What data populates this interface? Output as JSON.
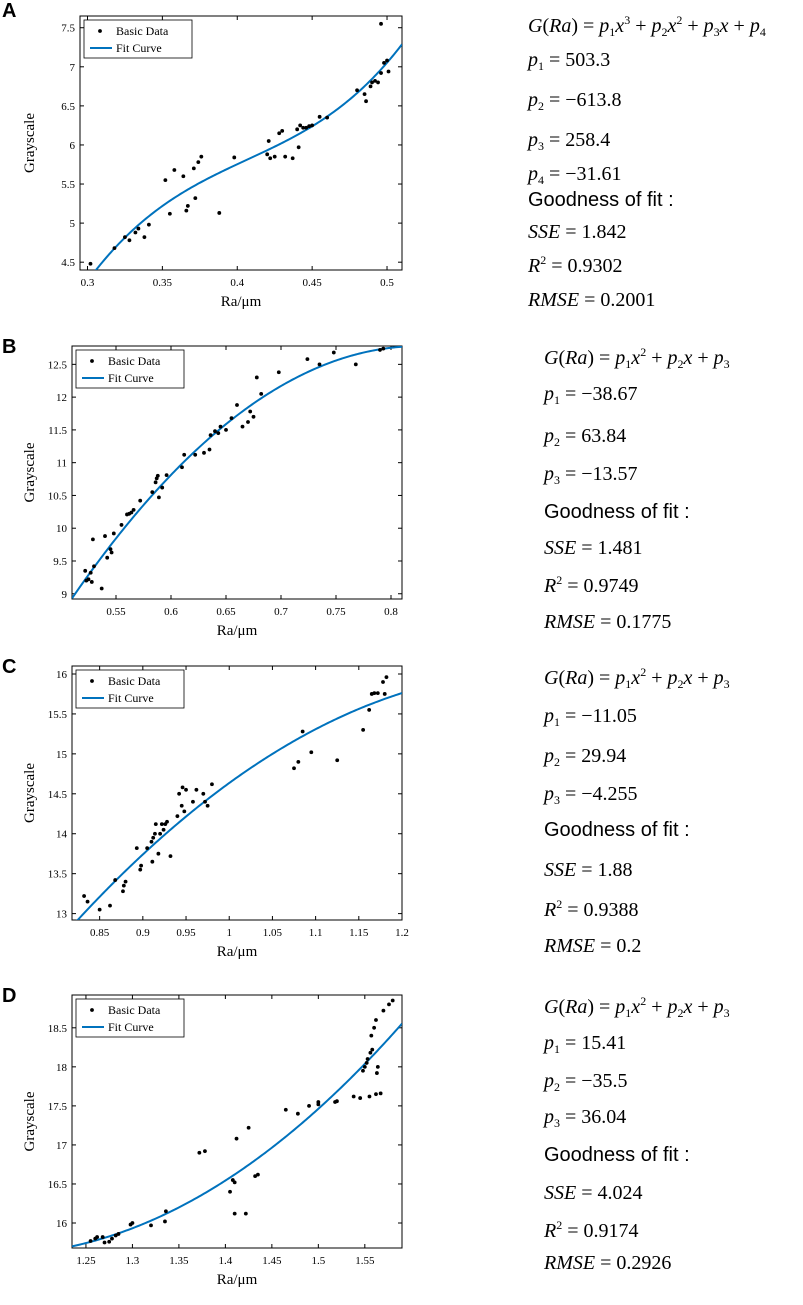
{
  "colors": {
    "fit": "#0072BD",
    "points": "#000000",
    "axis": "#000000"
  },
  "gof_label": "Goodness of fit :",
  "chart_data": [
    {
      "panel": "A",
      "type": "scatter",
      "xlabel": "Ra/μm",
      "ylabel": "Grayscale",
      "xlim": [
        0.295,
        0.51
      ],
      "ylim": [
        4.4,
        7.65
      ],
      "xticks": [
        0.3,
        0.35,
        0.4,
        0.45,
        0.5
      ],
      "xtick_labels": [
        "0.3",
        "0.35",
        "0.4",
        "0.45",
        "0.5"
      ],
      "yticks": [
        4.5,
        5,
        5.5,
        6,
        6.5,
        7,
        7.5
      ],
      "ytick_labels": [
        "4.5",
        "5",
        "5.5",
        "6",
        "6.5",
        "7",
        "7.5"
      ],
      "legend": [
        "Basic Data",
        "Fit Curve"
      ],
      "legend_position": "top-left",
      "fit": {
        "model": "cubic",
        "coef": [
          503.3,
          -613.8,
          258.4,
          -31.61
        ]
      },
      "points": [
        [
          0.302,
          4.48
        ],
        [
          0.318,
          4.68
        ],
        [
          0.325,
          4.82
        ],
        [
          0.328,
          4.78
        ],
        [
          0.332,
          4.88
        ],
        [
          0.334,
          4.93
        ],
        [
          0.338,
          4.82
        ],
        [
          0.341,
          4.98
        ],
        [
          0.352,
          5.55
        ],
        [
          0.355,
          5.12
        ],
        [
          0.358,
          5.68
        ],
        [
          0.364,
          5.6
        ],
        [
          0.366,
          5.16
        ],
        [
          0.367,
          5.22
        ],
        [
          0.371,
          5.7
        ],
        [
          0.372,
          5.32
        ],
        [
          0.374,
          5.78
        ],
        [
          0.376,
          5.85
        ],
        [
          0.388,
          5.13
        ],
        [
          0.398,
          5.84
        ],
        [
          0.42,
          5.88
        ],
        [
          0.421,
          6.05
        ],
        [
          0.422,
          5.83
        ],
        [
          0.425,
          5.85
        ],
        [
          0.428,
          6.15
        ],
        [
          0.43,
          6.18
        ],
        [
          0.432,
          5.85
        ],
        [
          0.437,
          5.83
        ],
        [
          0.44,
          6.2
        ],
        [
          0.441,
          5.97
        ],
        [
          0.442,
          6.25
        ],
        [
          0.444,
          6.22
        ],
        [
          0.446,
          6.22
        ],
        [
          0.448,
          6.24
        ],
        [
          0.45,
          6.25
        ],
        [
          0.455,
          6.36
        ],
        [
          0.46,
          6.35
        ],
        [
          0.48,
          6.7
        ],
        [
          0.485,
          6.65
        ],
        [
          0.486,
          6.56
        ],
        [
          0.489,
          6.75
        ],
        [
          0.49,
          6.8
        ],
        [
          0.492,
          6.82
        ],
        [
          0.494,
          6.8
        ],
        [
          0.496,
          6.92
        ],
        [
          0.496,
          7.55
        ],
        [
          0.498,
          7.05
        ],
        [
          0.5,
          7.08
        ],
        [
          0.501,
          6.94
        ]
      ],
      "equations": [
        "G(Ra) = p1x3 + p2x2 + p3x + p4",
        "p1 = 503.3",
        "p2 = −613.8",
        "p3 = 258.4",
        "p4 = −31.61"
      ],
      "stats": {
        "sse": "1.842",
        "r2": "0.9302",
        "rmse": "0.2001"
      }
    },
    {
      "panel": "B",
      "type": "scatter",
      "xlabel": "Ra/μm",
      "ylabel": "Grayscale",
      "xlim": [
        0.51,
        0.81
      ],
      "ylim": [
        8.92,
        12.78
      ],
      "xticks": [
        0.55,
        0.6,
        0.65,
        0.7,
        0.75,
        0.8
      ],
      "xtick_labels": [
        "0.55",
        "0.6",
        "0.65",
        "0.7",
        "0.75",
        "0.8"
      ],
      "yticks": [
        9,
        9.5,
        10,
        10.5,
        11,
        11.5,
        12,
        12.5
      ],
      "ytick_labels": [
        "9",
        "9.5",
        "10",
        "10.5",
        "11",
        "11.5",
        "12",
        "12.5"
      ],
      "legend": [
        "Basic Data",
        "Fit Curve"
      ],
      "legend_position": "top-left",
      "fit": {
        "model": "quadratic",
        "coef": [
          -38.67,
          63.84,
          -13.57
        ]
      },
      "points": [
        [
          0.522,
          9.35
        ],
        [
          0.523,
          9.2
        ],
        [
          0.525,
          9.22
        ],
        [
          0.527,
          9.32
        ],
        [
          0.528,
          9.18
        ],
        [
          0.529,
          9.83
        ],
        [
          0.53,
          9.42
        ],
        [
          0.537,
          9.08
        ],
        [
          0.54,
          9.88
        ],
        [
          0.542,
          9.55
        ],
        [
          0.545,
          9.68
        ],
        [
          0.546,
          9.63
        ],
        [
          0.548,
          9.92
        ],
        [
          0.555,
          10.05
        ],
        [
          0.56,
          10.21
        ],
        [
          0.562,
          10.22
        ],
        [
          0.564,
          10.24
        ],
        [
          0.566,
          10.28
        ],
        [
          0.572,
          10.42
        ],
        [
          0.583,
          10.55
        ],
        [
          0.586,
          10.7
        ],
        [
          0.587,
          10.76
        ],
        [
          0.588,
          10.8
        ],
        [
          0.589,
          10.47
        ],
        [
          0.592,
          10.62
        ],
        [
          0.596,
          10.81
        ],
        [
          0.61,
          10.93
        ],
        [
          0.612,
          11.12
        ],
        [
          0.622,
          11.12
        ],
        [
          0.63,
          11.15
        ],
        [
          0.635,
          11.2
        ],
        [
          0.636,
          11.42
        ],
        [
          0.64,
          11.48
        ],
        [
          0.643,
          11.45
        ],
        [
          0.645,
          11.55
        ],
        [
          0.65,
          11.5
        ],
        [
          0.655,
          11.68
        ],
        [
          0.66,
          11.88
        ],
        [
          0.665,
          11.55
        ],
        [
          0.67,
          11.62
        ],
        [
          0.672,
          11.78
        ],
        [
          0.675,
          11.7
        ],
        [
          0.678,
          12.3
        ],
        [
          0.682,
          12.05
        ],
        [
          0.698,
          12.38
        ],
        [
          0.724,
          12.58
        ],
        [
          0.735,
          12.5
        ],
        [
          0.748,
          12.68
        ],
        [
          0.768,
          12.5
        ],
        [
          0.79,
          12.72
        ],
        [
          0.793,
          12.74
        ]
      ],
      "equations": [
        "G(Ra) = p1x2 + p2x + p3",
        "p1 = −38.67",
        "p2 = 63.84",
        "p3 = −13.57"
      ],
      "stats": {
        "sse": "1.481",
        "r2": "0.9749",
        "rmse": "0.1775"
      }
    },
    {
      "panel": "C",
      "type": "scatter",
      "xlabel": "Ra/μm",
      "ylabel": "Grayscale",
      "xlim": [
        0.818,
        1.2
      ],
      "ylim": [
        12.92,
        16.1
      ],
      "xticks": [
        0.85,
        0.9,
        0.95,
        1,
        1.05,
        1.1,
        1.15,
        1.2
      ],
      "xtick_labels": [
        "0.85",
        "0.9",
        "0.95",
        "1",
        "1.05",
        "1.1",
        "1.15",
        "1.2"
      ],
      "yticks": [
        13,
        13.5,
        14,
        14.5,
        15,
        15.5,
        16
      ],
      "ytick_labels": [
        "13",
        "13.5",
        "14",
        "14.5",
        "15",
        "15.5",
        "16"
      ],
      "legend": [
        "Basic Data",
        "Fit Curve"
      ],
      "legend_position": "top-left",
      "fit": {
        "model": "quadratic",
        "coef": [
          -11.05,
          29.94,
          -4.255
        ]
      },
      "points": [
        [
          0.832,
          13.22
        ],
        [
          0.836,
          13.15
        ],
        [
          0.85,
          13.05
        ],
        [
          0.862,
          13.1
        ],
        [
          0.868,
          13.42
        ],
        [
          0.877,
          13.28
        ],
        [
          0.878,
          13.35
        ],
        [
          0.88,
          13.4
        ],
        [
          0.893,
          13.82
        ],
        [
          0.897,
          13.55
        ],
        [
          0.898,
          13.6
        ],
        [
          0.905,
          13.82
        ],
        [
          0.91,
          13.9
        ],
        [
          0.911,
          13.65
        ],
        [
          0.912,
          13.95
        ],
        [
          0.914,
          14.0
        ],
        [
          0.915,
          14.12
        ],
        [
          0.918,
          13.75
        ],
        [
          0.92,
          14.0
        ],
        [
          0.922,
          14.12
        ],
        [
          0.924,
          14.05
        ],
        [
          0.926,
          14.12
        ],
        [
          0.928,
          14.15
        ],
        [
          0.932,
          13.72
        ],
        [
          0.94,
          14.22
        ],
        [
          0.942,
          14.5
        ],
        [
          0.945,
          14.35
        ],
        [
          0.946,
          14.58
        ],
        [
          0.948,
          14.28
        ],
        [
          0.95,
          14.55
        ],
        [
          0.958,
          14.4
        ],
        [
          0.962,
          14.55
        ],
        [
          0.97,
          14.5
        ],
        [
          0.972,
          14.4
        ],
        [
          0.975,
          14.35
        ],
        [
          0.98,
          14.62
        ],
        [
          1.075,
          14.82
        ],
        [
          1.08,
          14.9
        ],
        [
          1.085,
          15.28
        ],
        [
          1.095,
          15.02
        ],
        [
          1.125,
          14.92
        ],
        [
          1.155,
          15.3
        ],
        [
          1.162,
          15.55
        ],
        [
          1.165,
          15.75
        ],
        [
          1.168,
          15.76
        ],
        [
          1.172,
          15.76
        ],
        [
          1.178,
          15.9
        ],
        [
          1.18,
          15.75
        ],
        [
          1.182,
          15.96
        ]
      ],
      "equations": [
        "G(Ra) = p1x2 + p2x + p3",
        "p1 = −11.05",
        "p2 = 29.94",
        "p3 = −4.255"
      ],
      "stats": {
        "sse": "1.88",
        "r2": "0.9388",
        "rmse": "0.2"
      }
    },
    {
      "panel": "D",
      "type": "scatter",
      "xlabel": "Ra/μm",
      "ylabel": "Grayscale",
      "xlim": [
        1.235,
        1.59
      ],
      "ylim": [
        15.68,
        18.92
      ],
      "xticks": [
        1.25,
        1.3,
        1.35,
        1.4,
        1.45,
        1.5,
        1.55
      ],
      "xtick_labels": [
        "1.25",
        "1.3",
        "1.35",
        "1.4",
        "1.45",
        "1.5",
        "1.55"
      ],
      "yticks": [
        16,
        16.5,
        17,
        17.5,
        18,
        18.5
      ],
      "ytick_labels": [
        "16",
        "16.5",
        "17",
        "17.5",
        "18",
        "18.5"
      ],
      "legend": [
        "Basic Data",
        "Fit Curve"
      ],
      "legend_position": "top-left",
      "fit": {
        "model": "quadratic",
        "coef": [
          15.41,
          -35.5,
          36.04
        ]
      },
      "points": [
        [
          1.255,
          15.77
        ],
        [
          1.26,
          15.8
        ],
        [
          1.262,
          15.82
        ],
        [
          1.268,
          15.82
        ],
        [
          1.27,
          15.75
        ],
        [
          1.275,
          15.76
        ],
        [
          1.278,
          15.8
        ],
        [
          1.282,
          15.84
        ],
        [
          1.285,
          15.86
        ],
        [
          1.298,
          15.98
        ],
        [
          1.3,
          16.0
        ],
        [
          1.32,
          15.97
        ],
        [
          1.335,
          16.02
        ],
        [
          1.336,
          16.15
        ],
        [
          1.372,
          16.9
        ],
        [
          1.378,
          16.92
        ],
        [
          1.405,
          16.4
        ],
        [
          1.408,
          16.55
        ],
        [
          1.41,
          16.52
        ],
        [
          1.41,
          16.12
        ],
        [
          1.412,
          17.08
        ],
        [
          1.422,
          16.12
        ],
        [
          1.425,
          17.22
        ],
        [
          1.432,
          16.6
        ],
        [
          1.435,
          16.62
        ],
        [
          1.465,
          17.45
        ],
        [
          1.478,
          17.4
        ],
        [
          1.49,
          17.5
        ],
        [
          1.5,
          17.55
        ],
        [
          1.5,
          17.52
        ],
        [
          1.518,
          17.55
        ],
        [
          1.52,
          17.56
        ],
        [
          1.538,
          17.62
        ],
        [
          1.545,
          17.6
        ],
        [
          1.548,
          17.95
        ],
        [
          1.55,
          18.0
        ],
        [
          1.552,
          18.05
        ],
        [
          1.553,
          18.1
        ],
        [
          1.555,
          17.62
        ],
        [
          1.556,
          18.18
        ],
        [
          1.557,
          18.4
        ],
        [
          1.558,
          18.22
        ],
        [
          1.56,
          18.5
        ],
        [
          1.562,
          17.65
        ],
        [
          1.562,
          18.6
        ],
        [
          1.563,
          17.92
        ],
        [
          1.564,
          18.0
        ],
        [
          1.567,
          17.66
        ],
        [
          1.57,
          18.72
        ],
        [
          1.576,
          18.8
        ],
        [
          1.58,
          18.85
        ]
      ],
      "equations": [
        "G(Ra) = p1x2 + p2x + p3",
        "p1 = 15.41",
        "p2 = −35.5",
        "p3 = 36.04"
      ],
      "stats": {
        "sse": "4.024",
        "r2": "0.9174",
        "rmse": "0.2926"
      }
    }
  ]
}
